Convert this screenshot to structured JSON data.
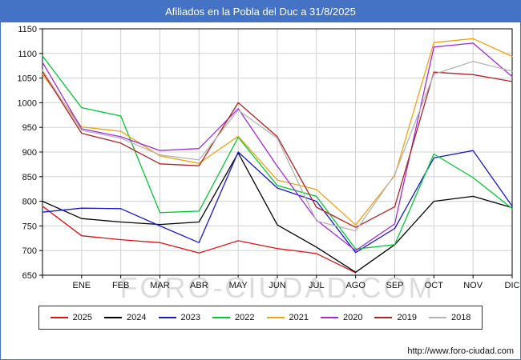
{
  "title_bar": {
    "title": "Afiliados en la Pobla del Duc a 31/8/2025",
    "bg_color": "#4472c4"
  },
  "watermark": "FORO-CIUDAD.COM",
  "footer": {
    "url": "http://www.foro-ciudad.com"
  },
  "chart_data": {
    "type": "line",
    "title": "Afiliados en la Pobla del Duc a 31/8/2025",
    "x_labels": [
      "",
      "ENE",
      "FEB",
      "MAR",
      "ABR",
      "MAY",
      "JUN",
      "JUL",
      "AGO",
      "SEP",
      "OCT",
      "NOV",
      "DIC"
    ],
    "ylim": [
      650,
      1150
    ],
    "ytick_step": 50,
    "grid": true,
    "legend_position": "bottom",
    "grid_color": "#d0d0d0",
    "axis_color": "#000000",
    "series": [
      {
        "name": "2025",
        "color": "#dd1111",
        "values": [
          790,
          730,
          722,
          716,
          695,
          720,
          704,
          694,
          655,
          null,
          null,
          null,
          null
        ]
      },
      {
        "name": "2024",
        "color": "#000000",
        "values": [
          800,
          765,
          758,
          753,
          758,
          898,
          752,
          707,
          656,
          712,
          800,
          810,
          787
        ]
      },
      {
        "name": "2023",
        "color": "#1818cc",
        "values": [
          778,
          786,
          785,
          750,
          716,
          900,
          827,
          800,
          696,
          745,
          888,
          903,
          790
        ]
      },
      {
        "name": "2022",
        "color": "#00c832",
        "values": [
          1095,
          990,
          973,
          777,
          780,
          930,
          832,
          810,
          703,
          712,
          896,
          848,
          785
        ]
      },
      {
        "name": "2021",
        "color": "#eda312",
        "values": [
          1058,
          951,
          942,
          892,
          877,
          932,
          843,
          824,
          752,
          852,
          1122,
          1130,
          1094
        ]
      },
      {
        "name": "2020",
        "color": "#a02cd8",
        "values": [
          1082,
          947,
          931,
          903,
          907,
          988,
          871,
          762,
          700,
          754,
          1113,
          1121,
          1053
        ]
      },
      {
        "name": "2019",
        "color": "#b22222",
        "values": [
          1063,
          938,
          918,
          876,
          872,
          1000,
          931,
          788,
          747,
          789,
          1062,
          1057,
          1043
        ]
      },
      {
        "name": "2018",
        "color": "#b4b4b4",
        "values": [
          1066,
          944,
          928,
          894,
          884,
          985,
          928,
          760,
          740,
          854,
          1058,
          1084,
          1064
        ]
      }
    ]
  }
}
